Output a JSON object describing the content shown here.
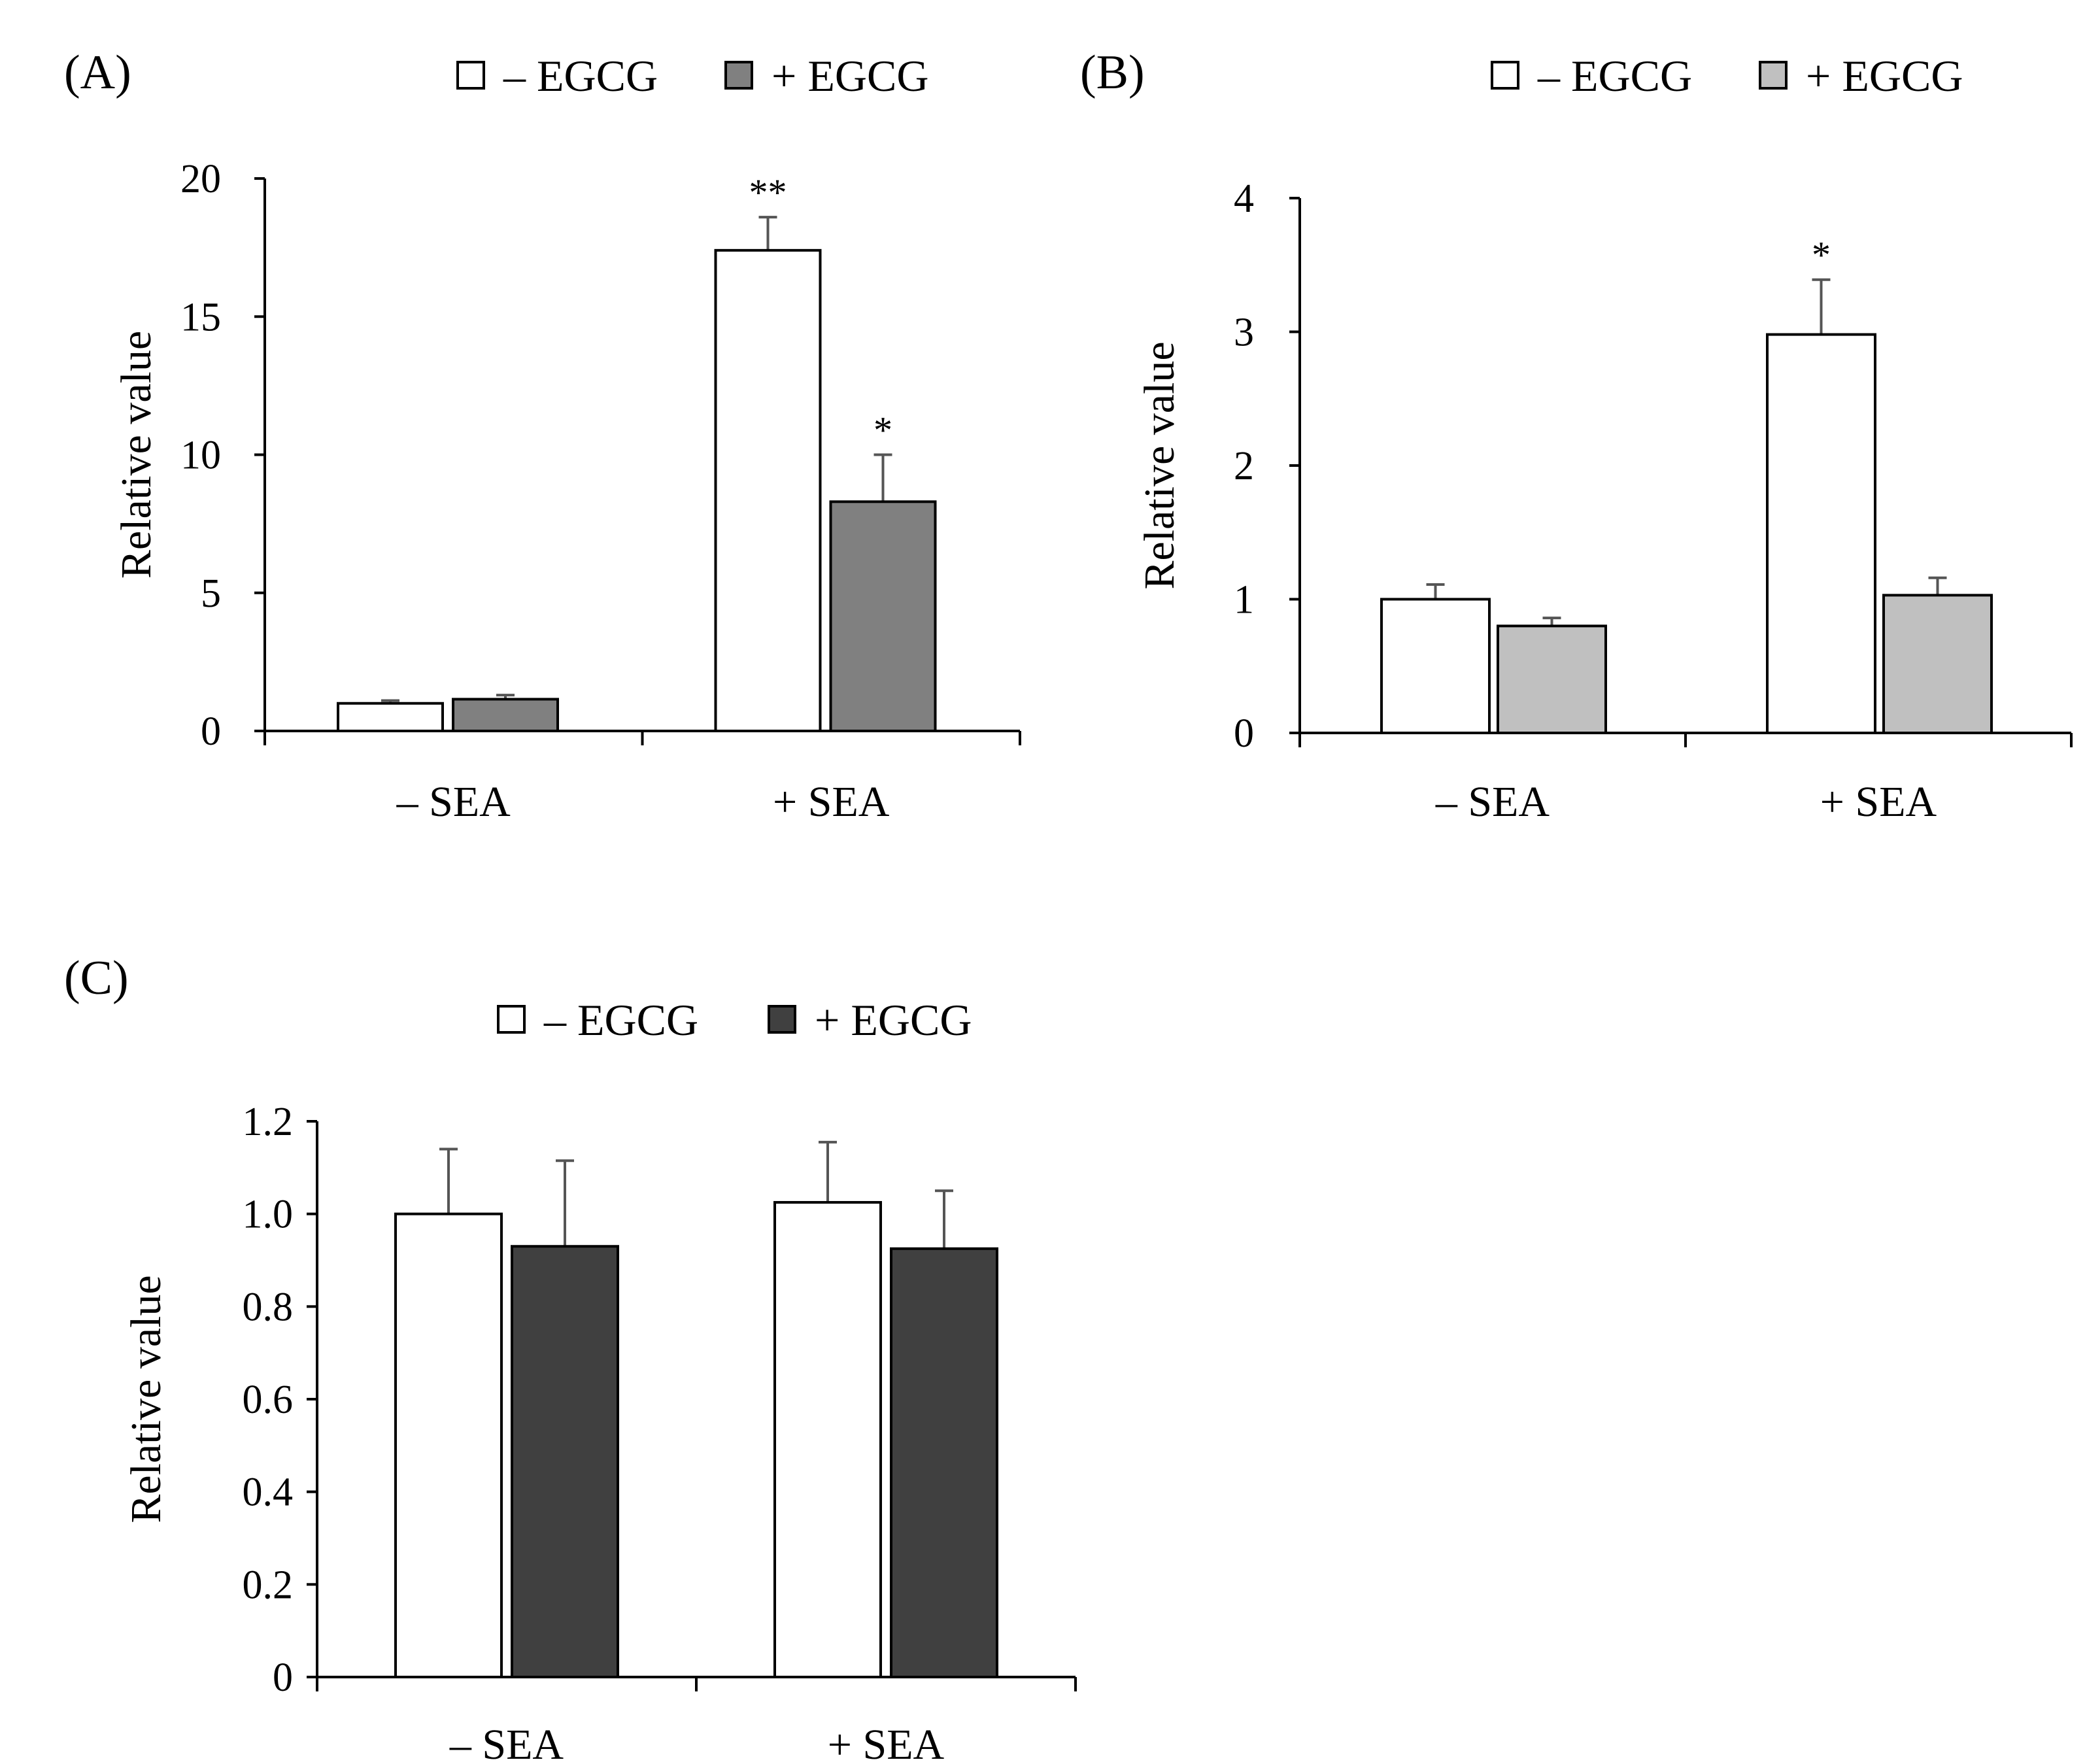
{
  "chart_data": [
    {
      "panel_label": "(A)",
      "type": "bar",
      "categories": [
        "– SEA",
        "+ SEA"
      ],
      "series": [
        {
          "name": "– EGCG",
          "color": "#ffffff",
          "values": [
            1.0,
            17.4
          ],
          "errors": [
            0.1,
            1.2
          ],
          "significance": [
            "",
            "**"
          ]
        },
        {
          "name": "+ EGCG",
          "color": "#808080",
          "values": [
            1.15,
            8.3
          ],
          "errors": [
            0.15,
            1.7
          ],
          "significance": [
            "",
            "*"
          ]
        }
      ],
      "ylabel": "Relative value",
      "ylim": [
        0,
        20
      ],
      "yticks": [
        0,
        5,
        10,
        15,
        20
      ],
      "ytick_labels": [
        "0",
        "5",
        "10",
        "15",
        "20"
      ],
      "legend": "top"
    },
    {
      "panel_label": "(B)",
      "type": "bar",
      "categories": [
        "– SEA",
        "+ SEA"
      ],
      "series": [
        {
          "name": "– EGCG",
          "color": "#ffffff",
          "values": [
            1.0,
            2.98
          ],
          "errors": [
            0.11,
            0.41
          ],
          "significance": [
            "",
            "*"
          ]
        },
        {
          "name": "+ EGCG",
          "color": "#c0c0c0",
          "values": [
            0.8,
            1.03
          ],
          "errors": [
            0.06,
            0.13
          ],
          "significance": [
            "",
            ""
          ]
        }
      ],
      "ylabel": "Relative value",
      "ylim": [
        0,
        4
      ],
      "yticks": [
        0,
        1,
        2,
        3,
        4
      ],
      "ytick_labels": [
        "0",
        "1",
        "2",
        "3",
        "4"
      ],
      "legend": "top"
    },
    {
      "panel_label": "(C)",
      "type": "bar",
      "categories": [
        "– SEA",
        "+ SEA"
      ],
      "series": [
        {
          "name": "– EGCG",
          "color": "#ffffff",
          "values": [
            1.0,
            1.025
          ],
          "errors": [
            0.14,
            0.13
          ],
          "significance": [
            "",
            ""
          ]
        },
        {
          "name": "+ EGCG",
          "color": "#404040",
          "values": [
            0.93,
            0.925
          ],
          "errors": [
            0.185,
            0.125
          ],
          "significance": [
            "",
            ""
          ]
        }
      ],
      "ylabel": "Relative value",
      "ylim": [
        0,
        1.2
      ],
      "yticks": [
        0,
        0.2,
        0.4,
        0.6,
        0.8,
        1.0,
        1.2
      ],
      "ytick_labels": [
        "0",
        "0.2",
        "0.4",
        "0.6",
        "0.8",
        "1.0",
        "1.2"
      ],
      "legend": "top"
    }
  ]
}
